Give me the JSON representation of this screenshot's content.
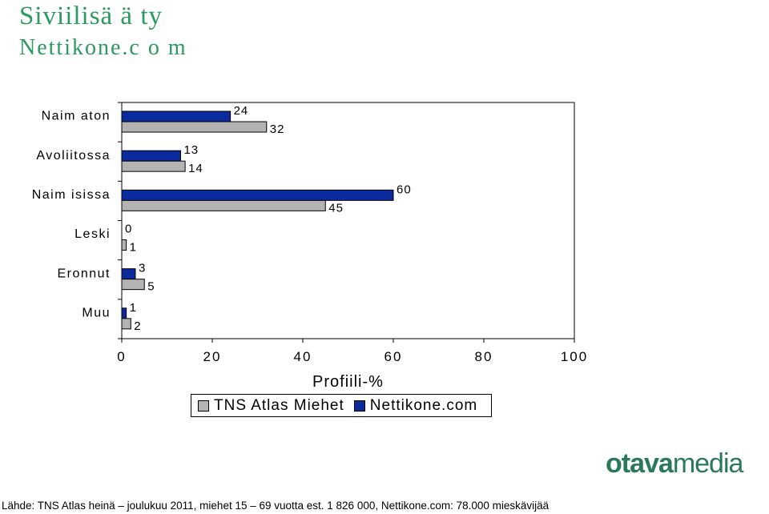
{
  "header": {
    "title": "Siviilisä ä ty",
    "subtitle": "Nettikone.c o m"
  },
  "chart_data": {
    "type": "bar",
    "orientation": "horizontal",
    "xlabel": "Profiili-%",
    "xlim": [
      0,
      100
    ],
    "xticks": [
      0,
      20,
      40,
      60,
      80,
      100
    ],
    "categories": [
      "Naim aton",
      "Avoliitossa",
      "Naim isissa",
      "Leski",
      "Eronnut",
      "Muu"
    ],
    "series": [
      {
        "name": "Nettikone.com",
        "color": "#0b2a9e",
        "values": [
          24,
          13,
          60,
          0,
          3,
          1
        ]
      },
      {
        "name": "TNS Atlas Miehet",
        "color": "#b3b3b3",
        "values": [
          32,
          14,
          45,
          1,
          5,
          2
        ]
      }
    ],
    "legend": [
      {
        "label": "TNS Atlas Miehet",
        "color": "#b3b3b3"
      },
      {
        "label": "Nettikone.com",
        "color": "#0b2a9e"
      }
    ],
    "legend_position": "bottom",
    "grid": false
  },
  "logo": {
    "bold": "otava",
    "light": "media"
  },
  "footer": {
    "text": "Lähde: TNS Atlas heinä – joulukuu 2011, miehet 15 – 69 vuotta est. 1 826 000, Nettikone.com: 78.000 mieskävijää"
  }
}
